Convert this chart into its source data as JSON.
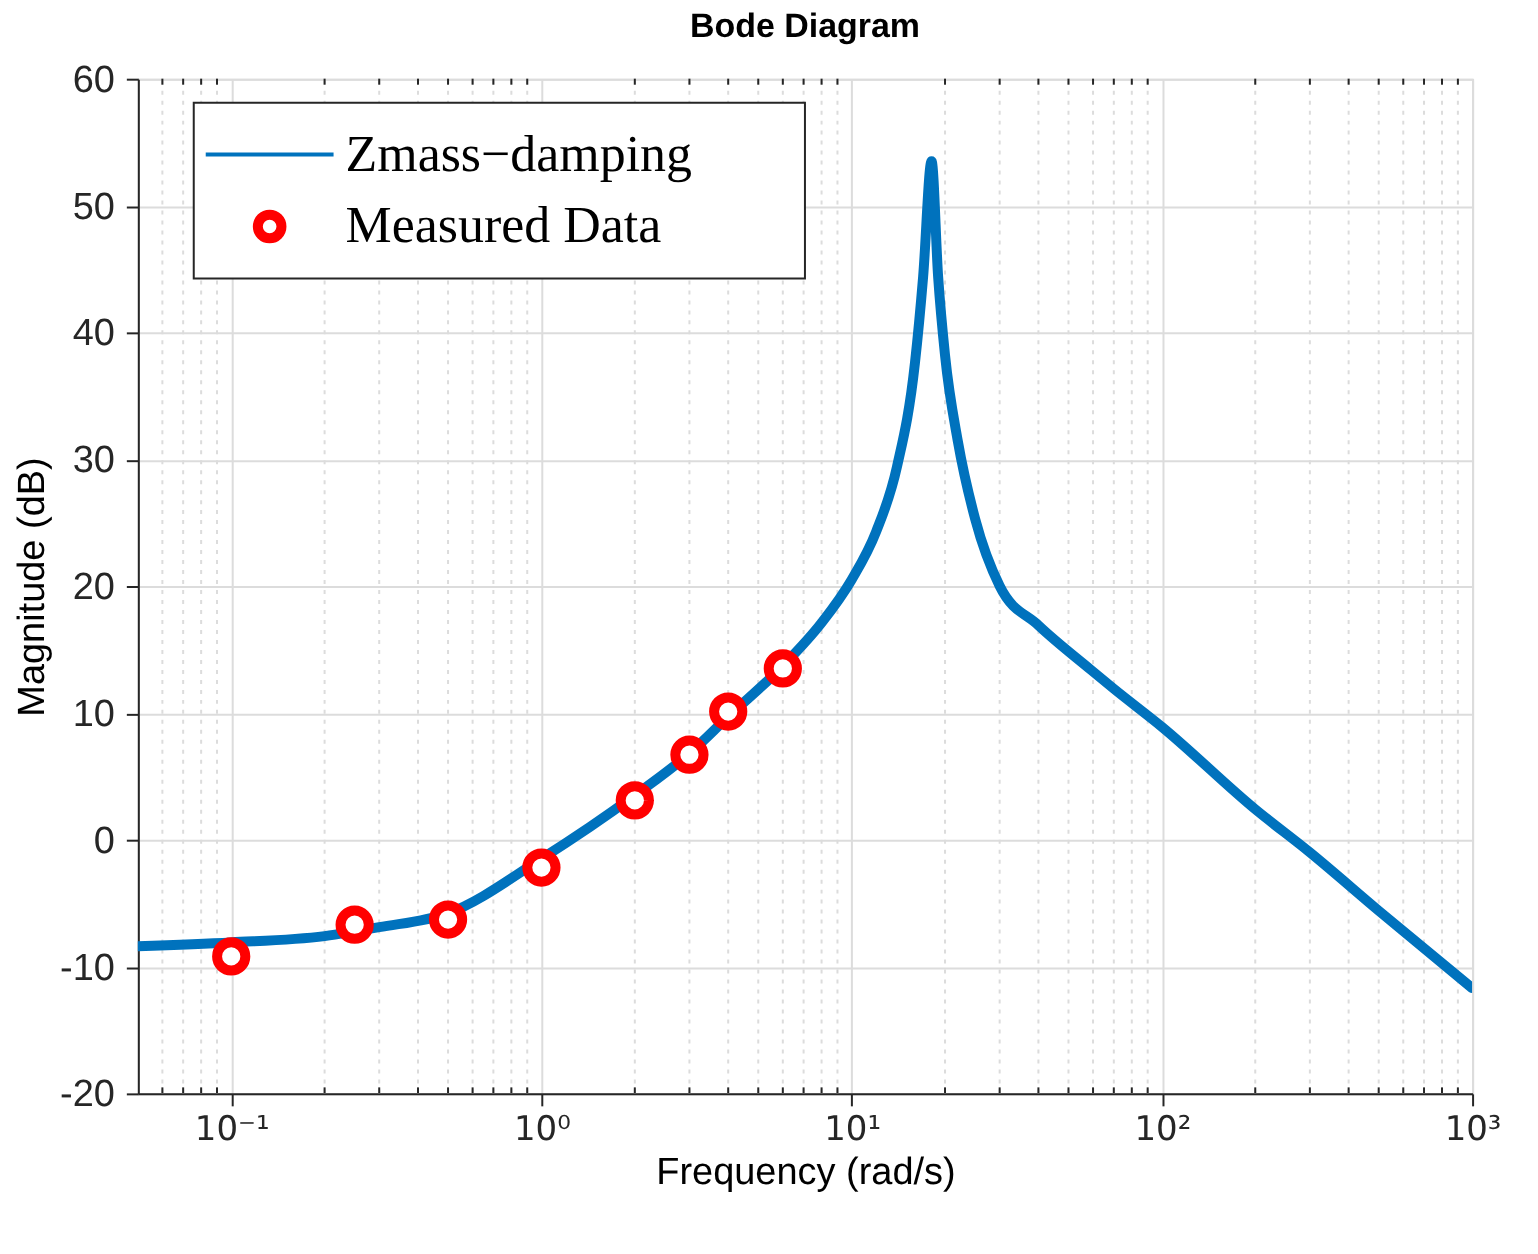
{
  "chart_data": {
    "type": "line",
    "title": "Bode Diagram",
    "xlabel": "Frequency  (rad/s)",
    "ylabel": "Magnitude (dB)",
    "log": "x",
    "grid": true,
    "legend": "top left",
    "xlim": [
      0.05,
      1000
    ],
    "ylim": [
      -20,
      60
    ],
    "xticks": [
      {
        "value": 0.06,
        "label": null
      },
      {
        "value": 0.07,
        "label": null
      },
      {
        "value": 0.08,
        "label": null
      },
      {
        "value": 0.09,
        "label": null
      },
      {
        "value": 0.1,
        "label": "10⁻¹"
      },
      {
        "value": 0.2,
        "label": null
      },
      {
        "value": 0.3,
        "label": null
      },
      {
        "value": 0.4,
        "label": null
      },
      {
        "value": 0.5,
        "label": null
      },
      {
        "value": 0.6,
        "label": null
      },
      {
        "value": 0.7,
        "label": null
      },
      {
        "value": 0.8,
        "label": null
      },
      {
        "value": 0.9,
        "label": null
      },
      {
        "value": 1,
        "label": "10⁰"
      },
      {
        "value": 2,
        "label": null
      },
      {
        "value": 3,
        "label": null
      },
      {
        "value": 4,
        "label": null
      },
      {
        "value": 5,
        "label": null
      },
      {
        "value": 6,
        "label": null
      },
      {
        "value": 7,
        "label": null
      },
      {
        "value": 8,
        "label": null
      },
      {
        "value": 9,
        "label": null
      },
      {
        "value": 10,
        "label": "10¹"
      },
      {
        "value": 20,
        "label": null
      },
      {
        "value": 30,
        "label": null
      },
      {
        "value": 40,
        "label": null
      },
      {
        "value": 50,
        "label": null
      },
      {
        "value": 60,
        "label": null
      },
      {
        "value": 70,
        "label": null
      },
      {
        "value": 80,
        "label": null
      },
      {
        "value": 90,
        "label": null
      },
      {
        "value": 100,
        "label": "10²"
      },
      {
        "value": 200,
        "label": null
      },
      {
        "value": 300,
        "label": null
      },
      {
        "value": 400,
        "label": null
      },
      {
        "value": 500,
        "label": null
      },
      {
        "value": 600,
        "label": null
      },
      {
        "value": 700,
        "label": null
      },
      {
        "value": 800,
        "label": null
      },
      {
        "value": 900,
        "label": null
      },
      {
        "value": 1000,
        "label": "10³"
      }
    ],
    "yticks": [
      -20,
      -10,
      0,
      10,
      20,
      30,
      40,
      50,
      60
    ],
    "series": [
      {
        "name": "Zmass−damping",
        "type": "line",
        "color": "#0072bd",
        "marker": "none",
        "line_style": "solid",
        "x": [
          0.05,
          0.1,
          0.2,
          0.3,
          0.5,
          1,
          2,
          3,
          4,
          6,
          8,
          10,
          12,
          14,
          16,
          17,
          18.1,
          19,
          20,
          22,
          25,
          30,
          40,
          59,
          70,
          100,
          200,
          300,
          500,
          1000
        ],
        "values": [
          -8.4,
          -8.1,
          -7.6,
          -6.9,
          -5.8,
          -1.5,
          3.5,
          6.8,
          9.7,
          13.7,
          17.1,
          20.5,
          24.3,
          29.4,
          37.6,
          44.4,
          53.5,
          44.4,
          38.2,
          31.4,
          25.3,
          20.0,
          16.9,
          13.4,
          11.9,
          8.9,
          2.4,
          -1.0,
          -5.6,
          -11.7
        ]
      },
      {
        "name": "Measured Data",
        "type": "scatter",
        "color": "#ff0000",
        "marker": "circle",
        "x": [
          0.1,
          0.25,
          0.5,
          1,
          2,
          3,
          4,
          6
        ],
        "values": [
          -9.2,
          -6.7,
          -6.3,
          -2.2,
          3.1,
          6.7,
          10.1,
          13.5
        ]
      }
    ]
  }
}
